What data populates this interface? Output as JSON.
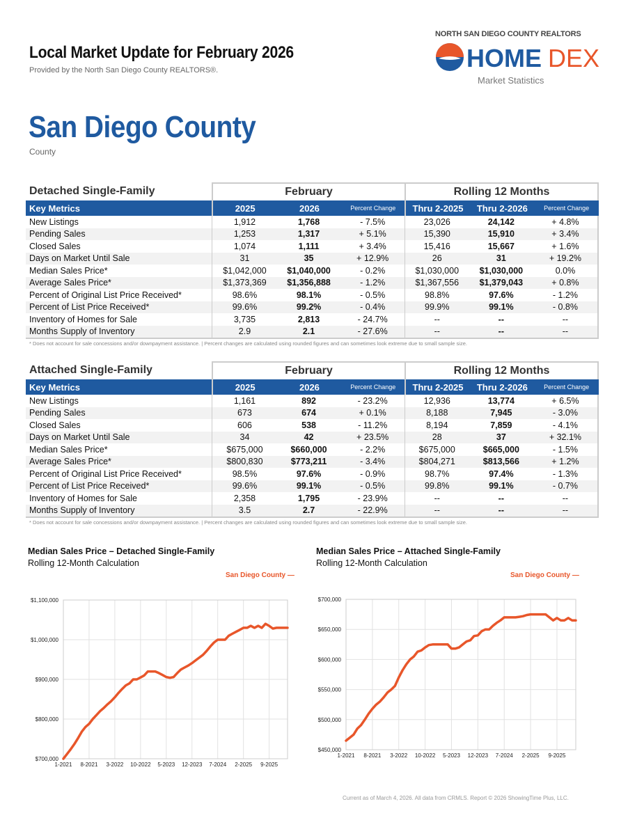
{
  "header": {
    "title": "Local Market Update for February 2026",
    "subtitle": "Provided by the North San Diego County REALTORS®.",
    "org": "NORTH SAN DIEGO COUNTY REALTORS",
    "logo_text": "HOMEDEX",
    "logo_sub": "Market Statistics",
    "area": "San Diego County",
    "area_type": "County"
  },
  "colors": {
    "brand_blue": "#1f5aa0",
    "accent_orange": "#e8562a"
  },
  "tables": [
    {
      "title": "Detached Single-Family",
      "group1": "February",
      "group2": "Rolling 12 Months",
      "headers": [
        "Key Metrics",
        "2025",
        "2026",
        "Percent Change",
        "Thru 2-2025",
        "Thru 2-2026",
        "Percent Change"
      ],
      "rows": [
        [
          "New Listings",
          "1,912",
          "1,768",
          "- 7.5%",
          "23,026",
          "24,142",
          "+ 4.8%"
        ],
        [
          "Pending Sales",
          "1,253",
          "1,317",
          "+ 5.1%",
          "15,390",
          "15,910",
          "+ 3.4%"
        ],
        [
          "Closed Sales",
          "1,074",
          "1,111",
          "+ 3.4%",
          "15,416",
          "15,667",
          "+ 1.6%"
        ],
        [
          "Days on Market Until Sale",
          "31",
          "35",
          "+ 12.9%",
          "26",
          "31",
          "+ 19.2%"
        ],
        [
          "Median Sales Price*",
          "$1,042,000",
          "$1,040,000",
          "- 0.2%",
          "$1,030,000",
          "$1,030,000",
          "0.0%"
        ],
        [
          "Average Sales Price*",
          "$1,373,369",
          "$1,356,888",
          "- 1.2%",
          "$1,367,556",
          "$1,379,043",
          "+ 0.8%"
        ],
        [
          "Percent of Original List Price Received*",
          "98.6%",
          "98.1%",
          "- 0.5%",
          "98.8%",
          "97.6%",
          "- 1.2%"
        ],
        [
          "Percent of List Price Received*",
          "99.6%",
          "99.2%",
          "- 0.4%",
          "99.9%",
          "99.1%",
          "- 0.8%"
        ],
        [
          "Inventory of Homes for Sale",
          "3,735",
          "2,813",
          "- 24.7%",
          "--",
          "--",
          "--"
        ],
        [
          "Months Supply of Inventory",
          "2.9",
          "2.1",
          "- 27.6%",
          "--",
          "--",
          "--"
        ]
      ],
      "note": "* Does not account for sale concessions and/or downpayment assistance.  |  Percent changes are calculated using rounded figures and can sometimes look extreme due to small sample size."
    },
    {
      "title": "Attached Single-Family",
      "group1": "February",
      "group2": "Rolling 12 Months",
      "headers": [
        "Key Metrics",
        "2025",
        "2026",
        "Percent Change",
        "Thru 2-2025",
        "Thru 2-2026",
        "Percent Change"
      ],
      "rows": [
        [
          "New Listings",
          "1,161",
          "892",
          "- 23.2%",
          "12,936",
          "13,774",
          "+ 6.5%"
        ],
        [
          "Pending Sales",
          "673",
          "674",
          "+ 0.1%",
          "8,188",
          "7,945",
          "- 3.0%"
        ],
        [
          "Closed Sales",
          "606",
          "538",
          "- 11.2%",
          "8,194",
          "7,859",
          "- 4.1%"
        ],
        [
          "Days on Market Until Sale",
          "34",
          "42",
          "+ 23.5%",
          "28",
          "37",
          "+ 32.1%"
        ],
        [
          "Median Sales Price*",
          "$675,000",
          "$660,000",
          "- 2.2%",
          "$675,000",
          "$665,000",
          "- 1.5%"
        ],
        [
          "Average Sales Price*",
          "$800,830",
          "$773,211",
          "- 3.4%",
          "$804,271",
          "$813,566",
          "+ 1.2%"
        ],
        [
          "Percent of Original List Price Received*",
          "98.5%",
          "97.6%",
          "- 0.9%",
          "98.7%",
          "97.4%",
          "- 1.3%"
        ],
        [
          "Percent of List Price Received*",
          "99.6%",
          "99.1%",
          "- 0.5%",
          "99.8%",
          "99.1%",
          "- 0.7%"
        ],
        [
          "Inventory of Homes for Sale",
          "2,358",
          "1,795",
          "- 23.9%",
          "--",
          "--",
          "--"
        ],
        [
          "Months Supply of Inventory",
          "3.5",
          "2.7",
          "- 22.9%",
          "--",
          "--",
          "--"
        ]
      ],
      "note": "* Does not account for sale concessions and/or downpayment assistance.  |  Percent changes are calculated using rounded figures and can sometimes look extreme due to small sample size."
    }
  ],
  "chart_data": [
    {
      "type": "line",
      "title": "Median Sales Price – Detached Single-Family",
      "subtitle": "Rolling 12-Month Calculation",
      "ylim": [
        700000,
        1100000
      ],
      "yticks": [
        "$700,000",
        "$800,000",
        "$900,000",
        "$1,000,000",
        "$1,100,000"
      ],
      "ytick_values": [
        700000,
        800000,
        900000,
        1000000,
        1100000
      ],
      "xticks": [
        "1-2021",
        "8-2021",
        "3-2022",
        "10-2022",
        "5-2023",
        "12-2023",
        "7-2024",
        "2-2025",
        "9-2025"
      ],
      "grid": true,
      "legend": "top-right",
      "x": [
        "1-2021",
        "2-2021",
        "3-2021",
        "4-2021",
        "5-2021",
        "6-2021",
        "7-2021",
        "8-2021",
        "9-2021",
        "10-2021",
        "11-2021",
        "12-2021",
        "1-2022",
        "2-2022",
        "3-2022",
        "4-2022",
        "5-2022",
        "6-2022",
        "7-2022",
        "8-2022",
        "9-2022",
        "10-2022",
        "11-2022",
        "12-2022",
        "1-2023",
        "2-2023",
        "3-2023",
        "4-2023",
        "5-2023",
        "6-2023",
        "7-2023",
        "8-2023",
        "9-2023",
        "10-2023",
        "11-2023",
        "12-2023",
        "1-2024",
        "2-2024",
        "3-2024",
        "4-2024",
        "5-2024",
        "6-2024",
        "7-2024",
        "8-2024",
        "9-2024",
        "10-2024",
        "11-2024",
        "12-2024",
        "1-2025",
        "2-2025",
        "3-2025",
        "4-2025",
        "5-2025",
        "6-2025",
        "7-2025",
        "8-2025",
        "9-2025",
        "10-2025",
        "11-2025",
        "12-2025",
        "1-2026",
        "2-2026"
      ],
      "series": [
        {
          "name": "San Diego County",
          "color": "#e8562a",
          "values": [
            700000,
            712000,
            724000,
            737000,
            752000,
            768000,
            780000,
            788000,
            800000,
            810000,
            820000,
            828000,
            837000,
            845000,
            855000,
            866000,
            876000,
            885000,
            890000,
            900000,
            900000,
            905000,
            910000,
            920000,
            920000,
            920000,
            916000,
            911000,
            906000,
            904000,
            906000,
            916000,
            925000,
            930000,
            935000,
            941000,
            948000,
            955000,
            962000,
            972000,
            983000,
            993000,
            1000000,
            1000000,
            1000000,
            1010000,
            1015000,
            1020000,
            1025000,
            1030000,
            1030000,
            1035000,
            1030000,
            1035000,
            1030000,
            1040000,
            1035000,
            1028000,
            1030000,
            1030000,
            1030000,
            1030000
          ]
        }
      ]
    },
    {
      "type": "line",
      "title": "Median Sales Price – Attached Single-Family",
      "subtitle": "Rolling 12-Month Calculation",
      "ylim": [
        450000,
        700000
      ],
      "yticks": [
        "$450,000",
        "$500,000",
        "$550,000",
        "$600,000",
        "$650,000",
        "$700,000"
      ],
      "ytick_values": [
        450000,
        500000,
        550000,
        600000,
        650000,
        700000
      ],
      "xticks": [
        "1-2021",
        "8-2021",
        "3-2022",
        "10-2022",
        "5-2023",
        "12-2023",
        "7-2024",
        "2-2025",
        "9-2025"
      ],
      "grid": true,
      "legend": "top-right",
      "x": [
        "1-2021",
        "2-2021",
        "3-2021",
        "4-2021",
        "5-2021",
        "6-2021",
        "7-2021",
        "8-2021",
        "9-2021",
        "10-2021",
        "11-2021",
        "12-2021",
        "1-2022",
        "2-2022",
        "3-2022",
        "4-2022",
        "5-2022",
        "6-2022",
        "7-2022",
        "8-2022",
        "9-2022",
        "10-2022",
        "11-2022",
        "12-2022",
        "1-2023",
        "2-2023",
        "3-2023",
        "4-2023",
        "5-2023",
        "6-2023",
        "7-2023",
        "8-2023",
        "9-2023",
        "10-2023",
        "11-2023",
        "12-2023",
        "1-2024",
        "2-2024",
        "3-2024",
        "4-2024",
        "5-2024",
        "6-2024",
        "7-2024",
        "8-2024",
        "9-2024",
        "10-2024",
        "11-2024",
        "12-2024",
        "1-2025",
        "2-2025",
        "3-2025",
        "4-2025",
        "5-2025",
        "6-2025",
        "7-2025",
        "8-2025",
        "9-2025",
        "10-2025",
        "11-2025",
        "12-2025",
        "1-2026",
        "2-2026"
      ],
      "series": [
        {
          "name": "San Diego County",
          "color": "#e8562a",
          "values": [
            465000,
            470000,
            475000,
            485000,
            491000,
            500000,
            510000,
            518000,
            525000,
            530000,
            537000,
            545000,
            550000,
            556000,
            570000,
            582000,
            592000,
            600000,
            605000,
            613000,
            615000,
            620000,
            624000,
            625000,
            625000,
            625000,
            625000,
            625000,
            618000,
            618000,
            620000,
            625000,
            630000,
            632000,
            639000,
            640000,
            647000,
            650000,
            650000,
            656000,
            661000,
            665000,
            670000,
            670000,
            670000,
            670000,
            671000,
            672000,
            674000,
            675000,
            675000,
            675000,
            675000,
            675000,
            670000,
            665000,
            669000,
            665000,
            665000,
            669000,
            665000,
            665000
          ]
        }
      ]
    }
  ],
  "footer": "Current as of March 4, 2026. All data from CRMLS. Report © 2026 ShowingTime Plus, LLC."
}
